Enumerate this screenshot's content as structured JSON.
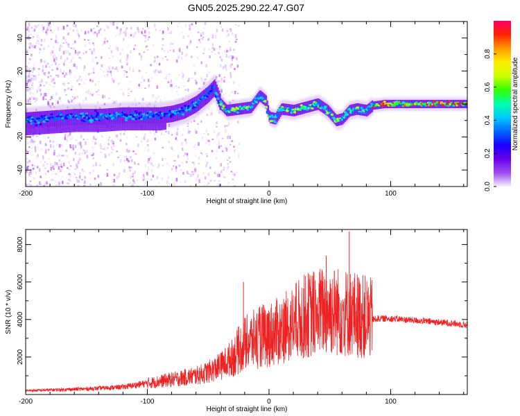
{
  "title": "GN05.2025.290.22.47.G07",
  "colors": {
    "snr_line": "#ee2222",
    "axis": "#000000",
    "colormap": [
      "#f6f0ff",
      "#e3ccfb",
      "#c79af6",
      "#9c4cf0",
      "#6a00ea",
      "#1a00ff",
      "#0066ff",
      "#00ccff",
      "#00ffaa",
      "#33ff00",
      "#ccff00",
      "#ffee00",
      "#ff9900",
      "#ff2200",
      "#ff0066",
      "#ff44aa"
    ]
  },
  "chart_data": [
    {
      "type": "heatmap",
      "title": "GN05.2025.290.22.47.G07",
      "xlabel": "Height of straight line (km)",
      "ylabel": "Frequency (Hz)",
      "xlim": [
        -200,
        163
      ],
      "ylim": [
        -50,
        50
      ],
      "xticks": [
        -200,
        -100,
        0,
        100
      ],
      "yticks": [
        -40,
        -20,
        0,
        20,
        40
      ],
      "colorbar": {
        "label": "Normalized spectral amplitude",
        "range": [
          0,
          1
        ],
        "ticks": [
          0.0,
          0.2,
          0.4,
          0.6,
          0.8
        ]
      },
      "ridge": [
        {
          "x": -200,
          "y": -10
        },
        {
          "x": -180,
          "y": -9
        },
        {
          "x": -160,
          "y": -8
        },
        {
          "x": -140,
          "y": -8
        },
        {
          "x": -120,
          "y": -7
        },
        {
          "x": -100,
          "y": -7
        },
        {
          "x": -90,
          "y": -7
        },
        {
          "x": -80,
          "y": -6
        },
        {
          "x": -70,
          "y": -4
        },
        {
          "x": -60,
          "y": 0
        },
        {
          "x": -50,
          "y": 6
        },
        {
          "x": -45,
          "y": 10
        },
        {
          "x": -40,
          "y": 0
        },
        {
          "x": -35,
          "y": -4
        },
        {
          "x": -25,
          "y": -3
        },
        {
          "x": -15,
          "y": -2
        },
        {
          "x": -8,
          "y": 5
        },
        {
          "x": -3,
          "y": 2
        },
        {
          "x": 0,
          "y": -8
        },
        {
          "x": 5,
          "y": -9
        },
        {
          "x": 10,
          "y": -3
        },
        {
          "x": 20,
          "y": -4
        },
        {
          "x": 30,
          "y": -2
        },
        {
          "x": 40,
          "y": 0
        },
        {
          "x": 48,
          "y": -4
        },
        {
          "x": 55,
          "y": -10
        },
        {
          "x": 60,
          "y": -9
        },
        {
          "x": 66,
          "y": -4
        },
        {
          "x": 72,
          "y": -3
        },
        {
          "x": 80,
          "y": -4
        },
        {
          "x": 85,
          "y": -1
        },
        {
          "x": 95,
          "y": 0
        },
        {
          "x": 110,
          "y": 0
        },
        {
          "x": 130,
          "y": 0
        },
        {
          "x": 150,
          "y": 0
        },
        {
          "x": 163,
          "y": 0
        }
      ]
    },
    {
      "type": "line",
      "xlabel": "Height of straight line (km)",
      "ylabel": "SNR (10 * v/v)",
      "xlim": [
        -200,
        163
      ],
      "ylim": [
        0,
        8800
      ],
      "xticks": [
        -200,
        -100,
        0,
        100
      ],
      "yticks": [
        2000,
        4000,
        6000,
        8000
      ],
      "series": [
        {
          "name": "SNR",
          "envelope_x": [
            -200,
            -150,
            -120,
            -100,
            -80,
            -60,
            -50,
            -40,
            -30,
            -20,
            -10,
            0,
            10,
            20,
            30,
            40,
            50,
            60,
            70,
            80,
            85,
            90,
            100,
            110,
            120,
            130,
            140,
            150,
            163
          ],
          "envelope_y": [
            200,
            300,
            400,
            600,
            800,
            1000,
            1200,
            1500,
            2000,
            2700,
            3000,
            3200,
            3400,
            3800,
            4200,
            4400,
            4500,
            4400,
            4300,
            4100,
            4000,
            4050,
            4050,
            4000,
            3950,
            3900,
            3850,
            3800,
            3700
          ],
          "spikes": [
            {
              "x": -21,
              "y": 6000
            },
            {
              "x": 47,
              "y": 7400
            },
            {
              "x": 66,
              "y": 8700
            },
            {
              "x": -5,
              "y": 4800
            }
          ]
        }
      ]
    }
  ]
}
